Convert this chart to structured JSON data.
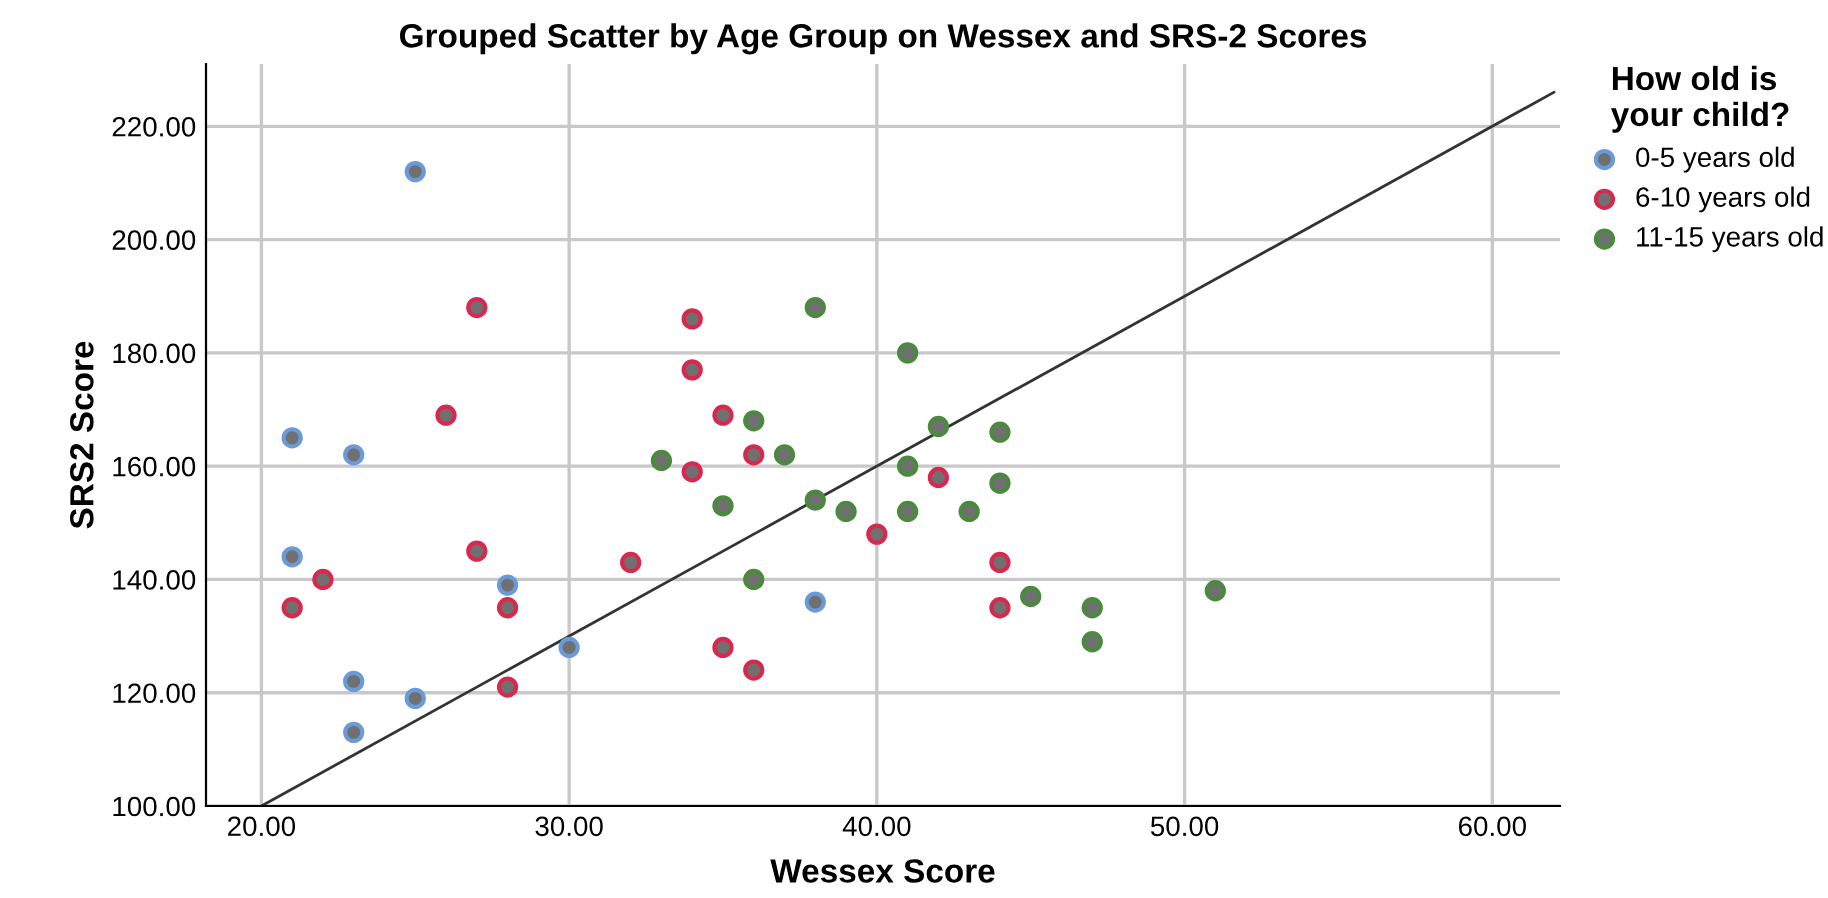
{
  "chart_data": {
    "type": "scatter",
    "title": "Grouped Scatter by Age Group on Wessex and SRS-2 Scores",
    "xlabel": "Wessex Score",
    "ylabel": "SRS2 Score",
    "legend_title": "How old is\nyour child?",
    "legend": "top right",
    "grid": true,
    "marker": "circle",
    "xlim": [
      18.2,
      62.2
    ],
    "ylim": [
      100,
      231
    ],
    "xticks": [
      {
        "value": 20,
        "label": "20.00"
      },
      {
        "value": 30,
        "label": "30.00"
      },
      {
        "value": 40,
        "label": "40.00"
      },
      {
        "value": 50,
        "label": "50.00"
      },
      {
        "value": 60,
        "label": "60.00"
      }
    ],
    "yticks": [
      {
        "value": 100,
        "label": "100.00"
      },
      {
        "value": 120,
        "label": "120.00"
      },
      {
        "value": 140,
        "label": "140.00"
      },
      {
        "value": 160,
        "label": "160.00"
      },
      {
        "value": 180,
        "label": "180.00"
      },
      {
        "value": 200,
        "label": "200.00"
      },
      {
        "value": 220,
        "label": "220.00"
      }
    ],
    "series": [
      {
        "name": "0-5 years old",
        "color": "#6a9ad8",
        "x": [
          25,
          21,
          23,
          21,
          28,
          30,
          23,
          25,
          23,
          38
        ],
        "values": [
          212,
          165,
          162,
          144,
          139,
          128,
          122,
          119,
          113,
          136
        ]
      },
      {
        "name": "6-10 years old",
        "color": "#d9284e",
        "x": [
          27,
          34,
          34,
          26,
          35,
          36,
          34,
          42,
          40,
          27,
          22,
          32,
          44,
          21,
          28,
          44,
          28,
          35,
          36
        ],
        "values": [
          188,
          186,
          177,
          169,
          169,
          162,
          159,
          158,
          148,
          145,
          140,
          143,
          143,
          135,
          135,
          135,
          121,
          128,
          124
        ]
      },
      {
        "name": "11-15 years old",
        "color": "#4a8a3e",
        "x": [
          38,
          41,
          42,
          44,
          36,
          37,
          33,
          41,
          44,
          38,
          35,
          39,
          41,
          43,
          36,
          45,
          47,
          51,
          47
        ],
        "values": [
          188,
          180,
          167,
          166,
          168,
          162,
          161,
          160,
          157,
          154,
          153,
          152,
          152,
          152,
          140,
          137,
          135,
          138,
          129
        ]
      },
      {
        "type": "line",
        "marker": "none",
        "color": "#333333",
        "x": [
          20,
          62
        ],
        "values": [
          100,
          226
        ]
      }
    ]
  }
}
